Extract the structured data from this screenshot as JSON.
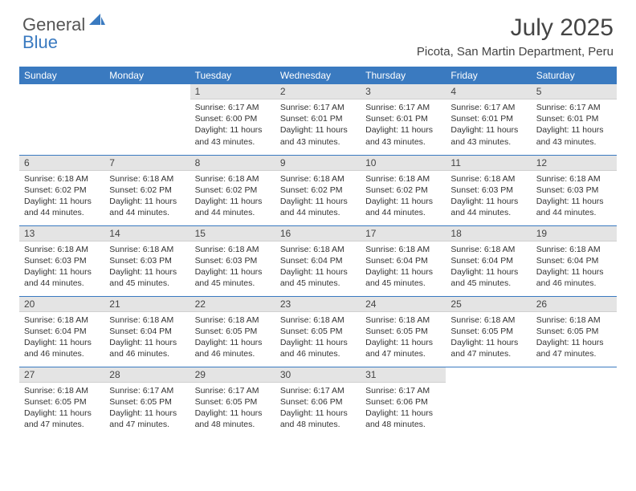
{
  "brand": {
    "part1": "General",
    "part2": "Blue",
    "logo_color": "#3a7ac0"
  },
  "title": "July 2025",
  "location": "Picota, San Martin Department, Peru",
  "colors": {
    "header_bg": "#3a7ac0",
    "header_text": "#ffffff",
    "daynum_bg": "#e4e4e4",
    "text": "#333333",
    "week_border": "#3a7ac0"
  },
  "fonts": {
    "title_size": 30,
    "location_size": 15,
    "th_size": 12,
    "body_size": 10.5
  },
  "day_headers": [
    "Sunday",
    "Monday",
    "Tuesday",
    "Wednesday",
    "Thursday",
    "Friday",
    "Saturday"
  ],
  "weeks": [
    [
      null,
      null,
      {
        "n": "1",
        "sunrise": "6:17 AM",
        "sunset": "6:00 PM",
        "daylight": "11 hours and 43 minutes."
      },
      {
        "n": "2",
        "sunrise": "6:17 AM",
        "sunset": "6:01 PM",
        "daylight": "11 hours and 43 minutes."
      },
      {
        "n": "3",
        "sunrise": "6:17 AM",
        "sunset": "6:01 PM",
        "daylight": "11 hours and 43 minutes."
      },
      {
        "n": "4",
        "sunrise": "6:17 AM",
        "sunset": "6:01 PM",
        "daylight": "11 hours and 43 minutes."
      },
      {
        "n": "5",
        "sunrise": "6:17 AM",
        "sunset": "6:01 PM",
        "daylight": "11 hours and 43 minutes."
      }
    ],
    [
      {
        "n": "6",
        "sunrise": "6:18 AM",
        "sunset": "6:02 PM",
        "daylight": "11 hours and 44 minutes."
      },
      {
        "n": "7",
        "sunrise": "6:18 AM",
        "sunset": "6:02 PM",
        "daylight": "11 hours and 44 minutes."
      },
      {
        "n": "8",
        "sunrise": "6:18 AM",
        "sunset": "6:02 PM",
        "daylight": "11 hours and 44 minutes."
      },
      {
        "n": "9",
        "sunrise": "6:18 AM",
        "sunset": "6:02 PM",
        "daylight": "11 hours and 44 minutes."
      },
      {
        "n": "10",
        "sunrise": "6:18 AM",
        "sunset": "6:02 PM",
        "daylight": "11 hours and 44 minutes."
      },
      {
        "n": "11",
        "sunrise": "6:18 AM",
        "sunset": "6:03 PM",
        "daylight": "11 hours and 44 minutes."
      },
      {
        "n": "12",
        "sunrise": "6:18 AM",
        "sunset": "6:03 PM",
        "daylight": "11 hours and 44 minutes."
      }
    ],
    [
      {
        "n": "13",
        "sunrise": "6:18 AM",
        "sunset": "6:03 PM",
        "daylight": "11 hours and 44 minutes."
      },
      {
        "n": "14",
        "sunrise": "6:18 AM",
        "sunset": "6:03 PM",
        "daylight": "11 hours and 45 minutes."
      },
      {
        "n": "15",
        "sunrise": "6:18 AM",
        "sunset": "6:03 PM",
        "daylight": "11 hours and 45 minutes."
      },
      {
        "n": "16",
        "sunrise": "6:18 AM",
        "sunset": "6:04 PM",
        "daylight": "11 hours and 45 minutes."
      },
      {
        "n": "17",
        "sunrise": "6:18 AM",
        "sunset": "6:04 PM",
        "daylight": "11 hours and 45 minutes."
      },
      {
        "n": "18",
        "sunrise": "6:18 AM",
        "sunset": "6:04 PM",
        "daylight": "11 hours and 45 minutes."
      },
      {
        "n": "19",
        "sunrise": "6:18 AM",
        "sunset": "6:04 PM",
        "daylight": "11 hours and 46 minutes."
      }
    ],
    [
      {
        "n": "20",
        "sunrise": "6:18 AM",
        "sunset": "6:04 PM",
        "daylight": "11 hours and 46 minutes."
      },
      {
        "n": "21",
        "sunrise": "6:18 AM",
        "sunset": "6:04 PM",
        "daylight": "11 hours and 46 minutes."
      },
      {
        "n": "22",
        "sunrise": "6:18 AM",
        "sunset": "6:05 PM",
        "daylight": "11 hours and 46 minutes."
      },
      {
        "n": "23",
        "sunrise": "6:18 AM",
        "sunset": "6:05 PM",
        "daylight": "11 hours and 46 minutes."
      },
      {
        "n": "24",
        "sunrise": "6:18 AM",
        "sunset": "6:05 PM",
        "daylight": "11 hours and 47 minutes."
      },
      {
        "n": "25",
        "sunrise": "6:18 AM",
        "sunset": "6:05 PM",
        "daylight": "11 hours and 47 minutes."
      },
      {
        "n": "26",
        "sunrise": "6:18 AM",
        "sunset": "6:05 PM",
        "daylight": "11 hours and 47 minutes."
      }
    ],
    [
      {
        "n": "27",
        "sunrise": "6:18 AM",
        "sunset": "6:05 PM",
        "daylight": "11 hours and 47 minutes."
      },
      {
        "n": "28",
        "sunrise": "6:17 AM",
        "sunset": "6:05 PM",
        "daylight": "11 hours and 47 minutes."
      },
      {
        "n": "29",
        "sunrise": "6:17 AM",
        "sunset": "6:05 PM",
        "daylight": "11 hours and 48 minutes."
      },
      {
        "n": "30",
        "sunrise": "6:17 AM",
        "sunset": "6:06 PM",
        "daylight": "11 hours and 48 minutes."
      },
      {
        "n": "31",
        "sunrise": "6:17 AM",
        "sunset": "6:06 PM",
        "daylight": "11 hours and 48 minutes."
      },
      null,
      null
    ]
  ],
  "labels": {
    "sunrise": "Sunrise:",
    "sunset": "Sunset:",
    "daylight": "Daylight:"
  }
}
